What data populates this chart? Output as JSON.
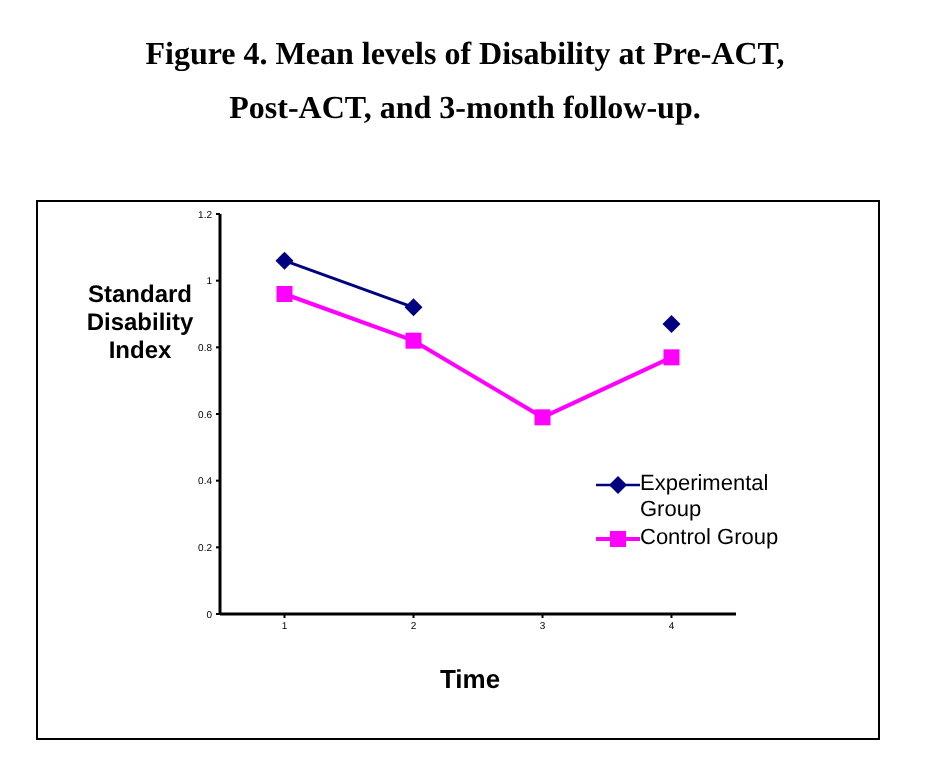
{
  "chart_data": {
    "type": "line",
    "title": "Figure 4. Mean levels of Disability at Pre-ACT, Post-ACT, and 3-month follow-up.",
    "xlabel": "Time",
    "ylabel": "Standard Disability Index",
    "x": [
      1,
      2,
      3,
      4
    ],
    "xlim": [
      0.5,
      4.5
    ],
    "xticks": [
      1,
      2,
      3,
      4
    ],
    "series": [
      {
        "name": "Experimental Group",
        "color": "#000080",
        "marker": "diamond",
        "values": [
          1.06,
          0.92,
          null,
          0.87
        ]
      },
      {
        "name": "Control Group",
        "color": "#ff00ff",
        "marker": "square",
        "values": [
          0.96,
          0.82,
          0.59,
          0.77
        ]
      }
    ],
    "ylim": [
      0,
      1.2
    ],
    "yticks": [
      0,
      0.2,
      0.4,
      0.6,
      0.8,
      1,
      1.2
    ],
    "grid": false,
    "legend": "right"
  }
}
